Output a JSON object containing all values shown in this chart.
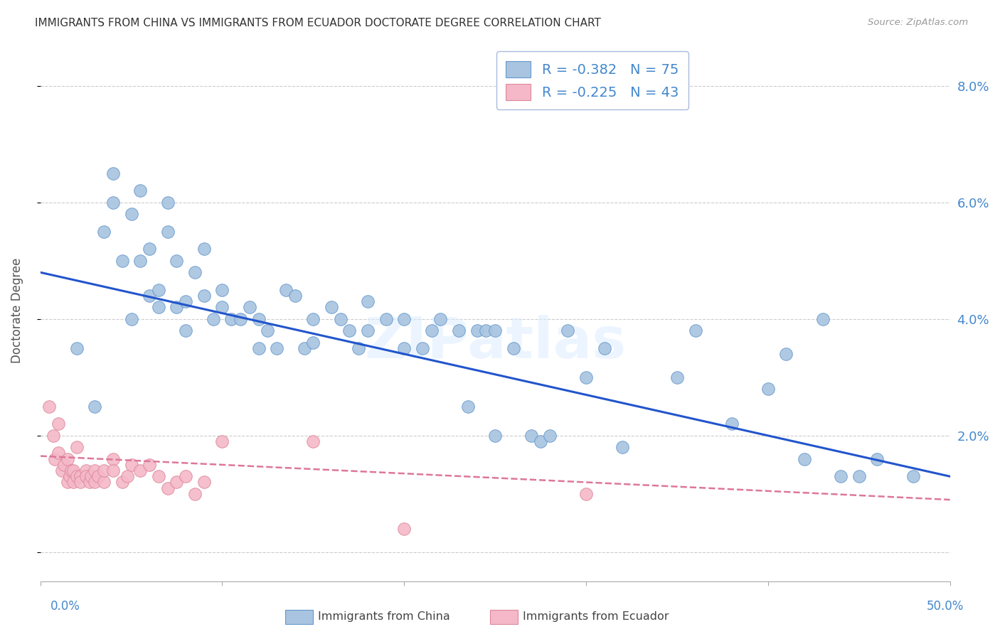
{
  "title": "IMMIGRANTS FROM CHINA VS IMMIGRANTS FROM ECUADOR DOCTORATE DEGREE CORRELATION CHART",
  "source": "Source: ZipAtlas.com",
  "ylabel": "Doctorate Degree",
  "xmin": 0.0,
  "xmax": 0.5,
  "ymin": -0.005,
  "ymax": 0.088,
  "china_color": "#a8c4e0",
  "china_edge": "#6699cc",
  "ecuador_color": "#f4b8c8",
  "ecuador_edge": "#dd8899",
  "china_line_color": "#2255cc",
  "ecuador_line_color": "#dd7799",
  "watermark": "ZIPatlas",
  "legend_china_r": "-0.382",
  "legend_china_n": "75",
  "legend_ecuador_r": "-0.225",
  "legend_ecuador_n": "43",
  "china_scatter_x": [
    0.02,
    0.03,
    0.035,
    0.04,
    0.04,
    0.045,
    0.05,
    0.05,
    0.055,
    0.055,
    0.06,
    0.06,
    0.065,
    0.065,
    0.07,
    0.07,
    0.075,
    0.075,
    0.08,
    0.08,
    0.085,
    0.09,
    0.09,
    0.095,
    0.1,
    0.1,
    0.105,
    0.11,
    0.115,
    0.12,
    0.12,
    0.125,
    0.13,
    0.135,
    0.14,
    0.145,
    0.15,
    0.15,
    0.16,
    0.165,
    0.17,
    0.175,
    0.18,
    0.18,
    0.19,
    0.2,
    0.2,
    0.21,
    0.215,
    0.22,
    0.23,
    0.235,
    0.24,
    0.245,
    0.25,
    0.25,
    0.26,
    0.27,
    0.275,
    0.28,
    0.29,
    0.3,
    0.31,
    0.32,
    0.35,
    0.36,
    0.38,
    0.4,
    0.41,
    0.42,
    0.43,
    0.44,
    0.45,
    0.46,
    0.48
  ],
  "china_scatter_y": [
    0.035,
    0.025,
    0.055,
    0.06,
    0.065,
    0.05,
    0.04,
    0.058,
    0.062,
    0.05,
    0.052,
    0.044,
    0.042,
    0.045,
    0.055,
    0.06,
    0.05,
    0.042,
    0.043,
    0.038,
    0.048,
    0.044,
    0.052,
    0.04,
    0.042,
    0.045,
    0.04,
    0.04,
    0.042,
    0.035,
    0.04,
    0.038,
    0.035,
    0.045,
    0.044,
    0.035,
    0.036,
    0.04,
    0.042,
    0.04,
    0.038,
    0.035,
    0.043,
    0.038,
    0.04,
    0.035,
    0.04,
    0.035,
    0.038,
    0.04,
    0.038,
    0.025,
    0.038,
    0.038,
    0.038,
    0.02,
    0.035,
    0.02,
    0.019,
    0.02,
    0.038,
    0.03,
    0.035,
    0.018,
    0.03,
    0.038,
    0.022,
    0.028,
    0.034,
    0.016,
    0.04,
    0.013,
    0.013,
    0.016,
    0.013
  ],
  "ecuador_scatter_x": [
    0.005,
    0.007,
    0.008,
    0.01,
    0.01,
    0.012,
    0.013,
    0.015,
    0.015,
    0.016,
    0.017,
    0.018,
    0.018,
    0.02,
    0.02,
    0.022,
    0.022,
    0.025,
    0.025,
    0.027,
    0.028,
    0.03,
    0.03,
    0.032,
    0.035,
    0.035,
    0.04,
    0.04,
    0.045,
    0.048,
    0.05,
    0.055,
    0.06,
    0.065,
    0.07,
    0.075,
    0.08,
    0.085,
    0.09,
    0.1,
    0.15,
    0.2,
    0.3
  ],
  "ecuador_scatter_y": [
    0.025,
    0.02,
    0.016,
    0.017,
    0.022,
    0.014,
    0.015,
    0.016,
    0.012,
    0.013,
    0.014,
    0.014,
    0.012,
    0.013,
    0.018,
    0.013,
    0.012,
    0.014,
    0.013,
    0.012,
    0.013,
    0.014,
    0.012,
    0.013,
    0.012,
    0.014,
    0.016,
    0.014,
    0.012,
    0.013,
    0.015,
    0.014,
    0.015,
    0.013,
    0.011,
    0.012,
    0.013,
    0.01,
    0.012,
    0.019,
    0.019,
    0.004,
    0.01
  ],
  "china_trend_y_start": 0.048,
  "china_trend_y_end": 0.013,
  "ecuador_trend_y_start": 0.0165,
  "ecuador_trend_y_end": 0.009,
  "grid_color": "#cccccc",
  "title_color": "#333333",
  "axis_label_color": "#4488cc",
  "background_color": "#ffffff"
}
